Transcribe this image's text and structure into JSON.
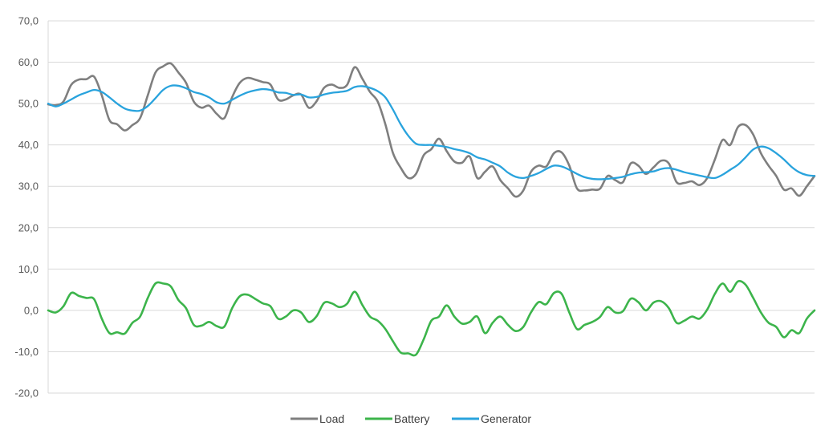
{
  "chart_data": {
    "type": "line",
    "title": "",
    "xlabel": "",
    "ylabel": "",
    "ylim": [
      -20,
      70
    ],
    "yticks": [
      "70,0",
      "60,0",
      "50,0",
      "40,0",
      "30,0",
      "20,0",
      "10,0",
      "0,0",
      "-10,0",
      "-20,0"
    ],
    "grid": true,
    "legend_position": "bottom",
    "series": [
      {
        "name": "Load",
        "color": "#7f7f7f",
        "values": [
          49.8,
          49.6,
          50.5,
          54.5,
          55.8,
          55.9,
          56.5,
          52,
          46,
          45,
          43.5,
          44.8,
          46.5,
          52,
          57.5,
          59,
          59.7,
          57.5,
          55,
          50.5,
          49,
          49.5,
          47.5,
          46.5,
          51.5,
          55,
          56.2,
          55.8,
          55.2,
          54.6,
          51,
          51,
          52,
          52.2,
          49,
          50.5,
          53.8,
          54.6,
          53.8,
          54.5,
          58.8,
          56,
          52.8,
          50.5,
          45,
          38,
          34.5,
          32,
          33,
          37.5,
          39,
          41.5,
          38.5,
          36,
          35.7,
          37.2,
          32,
          33.5,
          34.8,
          31.5,
          29.5,
          27.5,
          29,
          33.5,
          35,
          34.8,
          38,
          38.2,
          35,
          29.5,
          29,
          29.2,
          29.4,
          32.5,
          31.5,
          31,
          35.5,
          35,
          33,
          34.6,
          36.2,
          35.5,
          31,
          30.8,
          31.2,
          30.3,
          32,
          36.5,
          41.2,
          40,
          44.3,
          44.8,
          42.5,
          38,
          35,
          32.5,
          29.2,
          29.5,
          27.7,
          30,
          32.5
        ]
      },
      {
        "name": "Battery",
        "color": "#3cb44b",
        "values": [
          0,
          -0.5,
          1,
          4.2,
          3.5,
          3,
          2.7,
          -2,
          -5.5,
          -5.3,
          -5.6,
          -3,
          -1.5,
          3,
          6.5,
          6.5,
          5.8,
          2.5,
          0.5,
          -3.5,
          -3.7,
          -2.8,
          -3.8,
          -3.9,
          0.5,
          3.4,
          3.8,
          2.8,
          1.7,
          1,
          -2,
          -1.5,
          0,
          -0.5,
          -2.8,
          -1.5,
          1.8,
          1.7,
          0.8,
          1.6,
          4.5,
          1.3,
          -1.5,
          -2.5,
          -4.5,
          -7.5,
          -10.2,
          -10.4,
          -10.7,
          -7,
          -2.5,
          -1.5,
          1.2,
          -1.5,
          -3.2,
          -2.8,
          -1.5,
          -5.5,
          -3,
          -1.5,
          -3.5,
          -5,
          -4,
          -0.5,
          2,
          1.5,
          4.2,
          4,
          -0.5,
          -4.5,
          -3.5,
          -2.8,
          -1.6,
          0.8,
          -0.5,
          -0.2,
          2.8,
          2,
          0,
          1.9,
          2.2,
          0.5,
          -3,
          -2.5,
          -1.5,
          -2,
          0.2,
          4,
          6.5,
          4.5,
          7,
          6.2,
          3,
          -0.5,
          -3,
          -4,
          -6.5,
          -4.8,
          -5.5,
          -2,
          0
        ]
      },
      {
        "name": "Generator",
        "color": "#29a3dd",
        "values": [
          50,
          49.3,
          50,
          51,
          52,
          52.7,
          53.3,
          52.8,
          51.5,
          50,
          48.8,
          48.3,
          48.3,
          49.4,
          51.3,
          53.3,
          54.3,
          54.3,
          53.7,
          52.8,
          52.3,
          51.5,
          50.3,
          50,
          50.9,
          51.9,
          52.7,
          53.2,
          53.5,
          53.3,
          52.7,
          52.6,
          52.1,
          52.2,
          51.5,
          51.6,
          52.2,
          52.6,
          52.8,
          53.1,
          54,
          54.2,
          53.8,
          53,
          51.5,
          48.5,
          45,
          42.2,
          40.3,
          40,
          40,
          39.8,
          39.5,
          39,
          38.6,
          38,
          37,
          36.5,
          35.7,
          34.8,
          33.3,
          32.3,
          32,
          32.5,
          33.2,
          34.2,
          35,
          34.8,
          34,
          33,
          32.2,
          31.8,
          31.7,
          31.8,
          32,
          32.3,
          32.9,
          33.3,
          33.4,
          33.6,
          34.2,
          34.4,
          34,
          33.4,
          33,
          32.6,
          32.2,
          32,
          32.8,
          34,
          35.2,
          37,
          38.9,
          39.6,
          39.2,
          38,
          36.5,
          34.7,
          33.4,
          32.7,
          32.5
        ]
      }
    ]
  }
}
